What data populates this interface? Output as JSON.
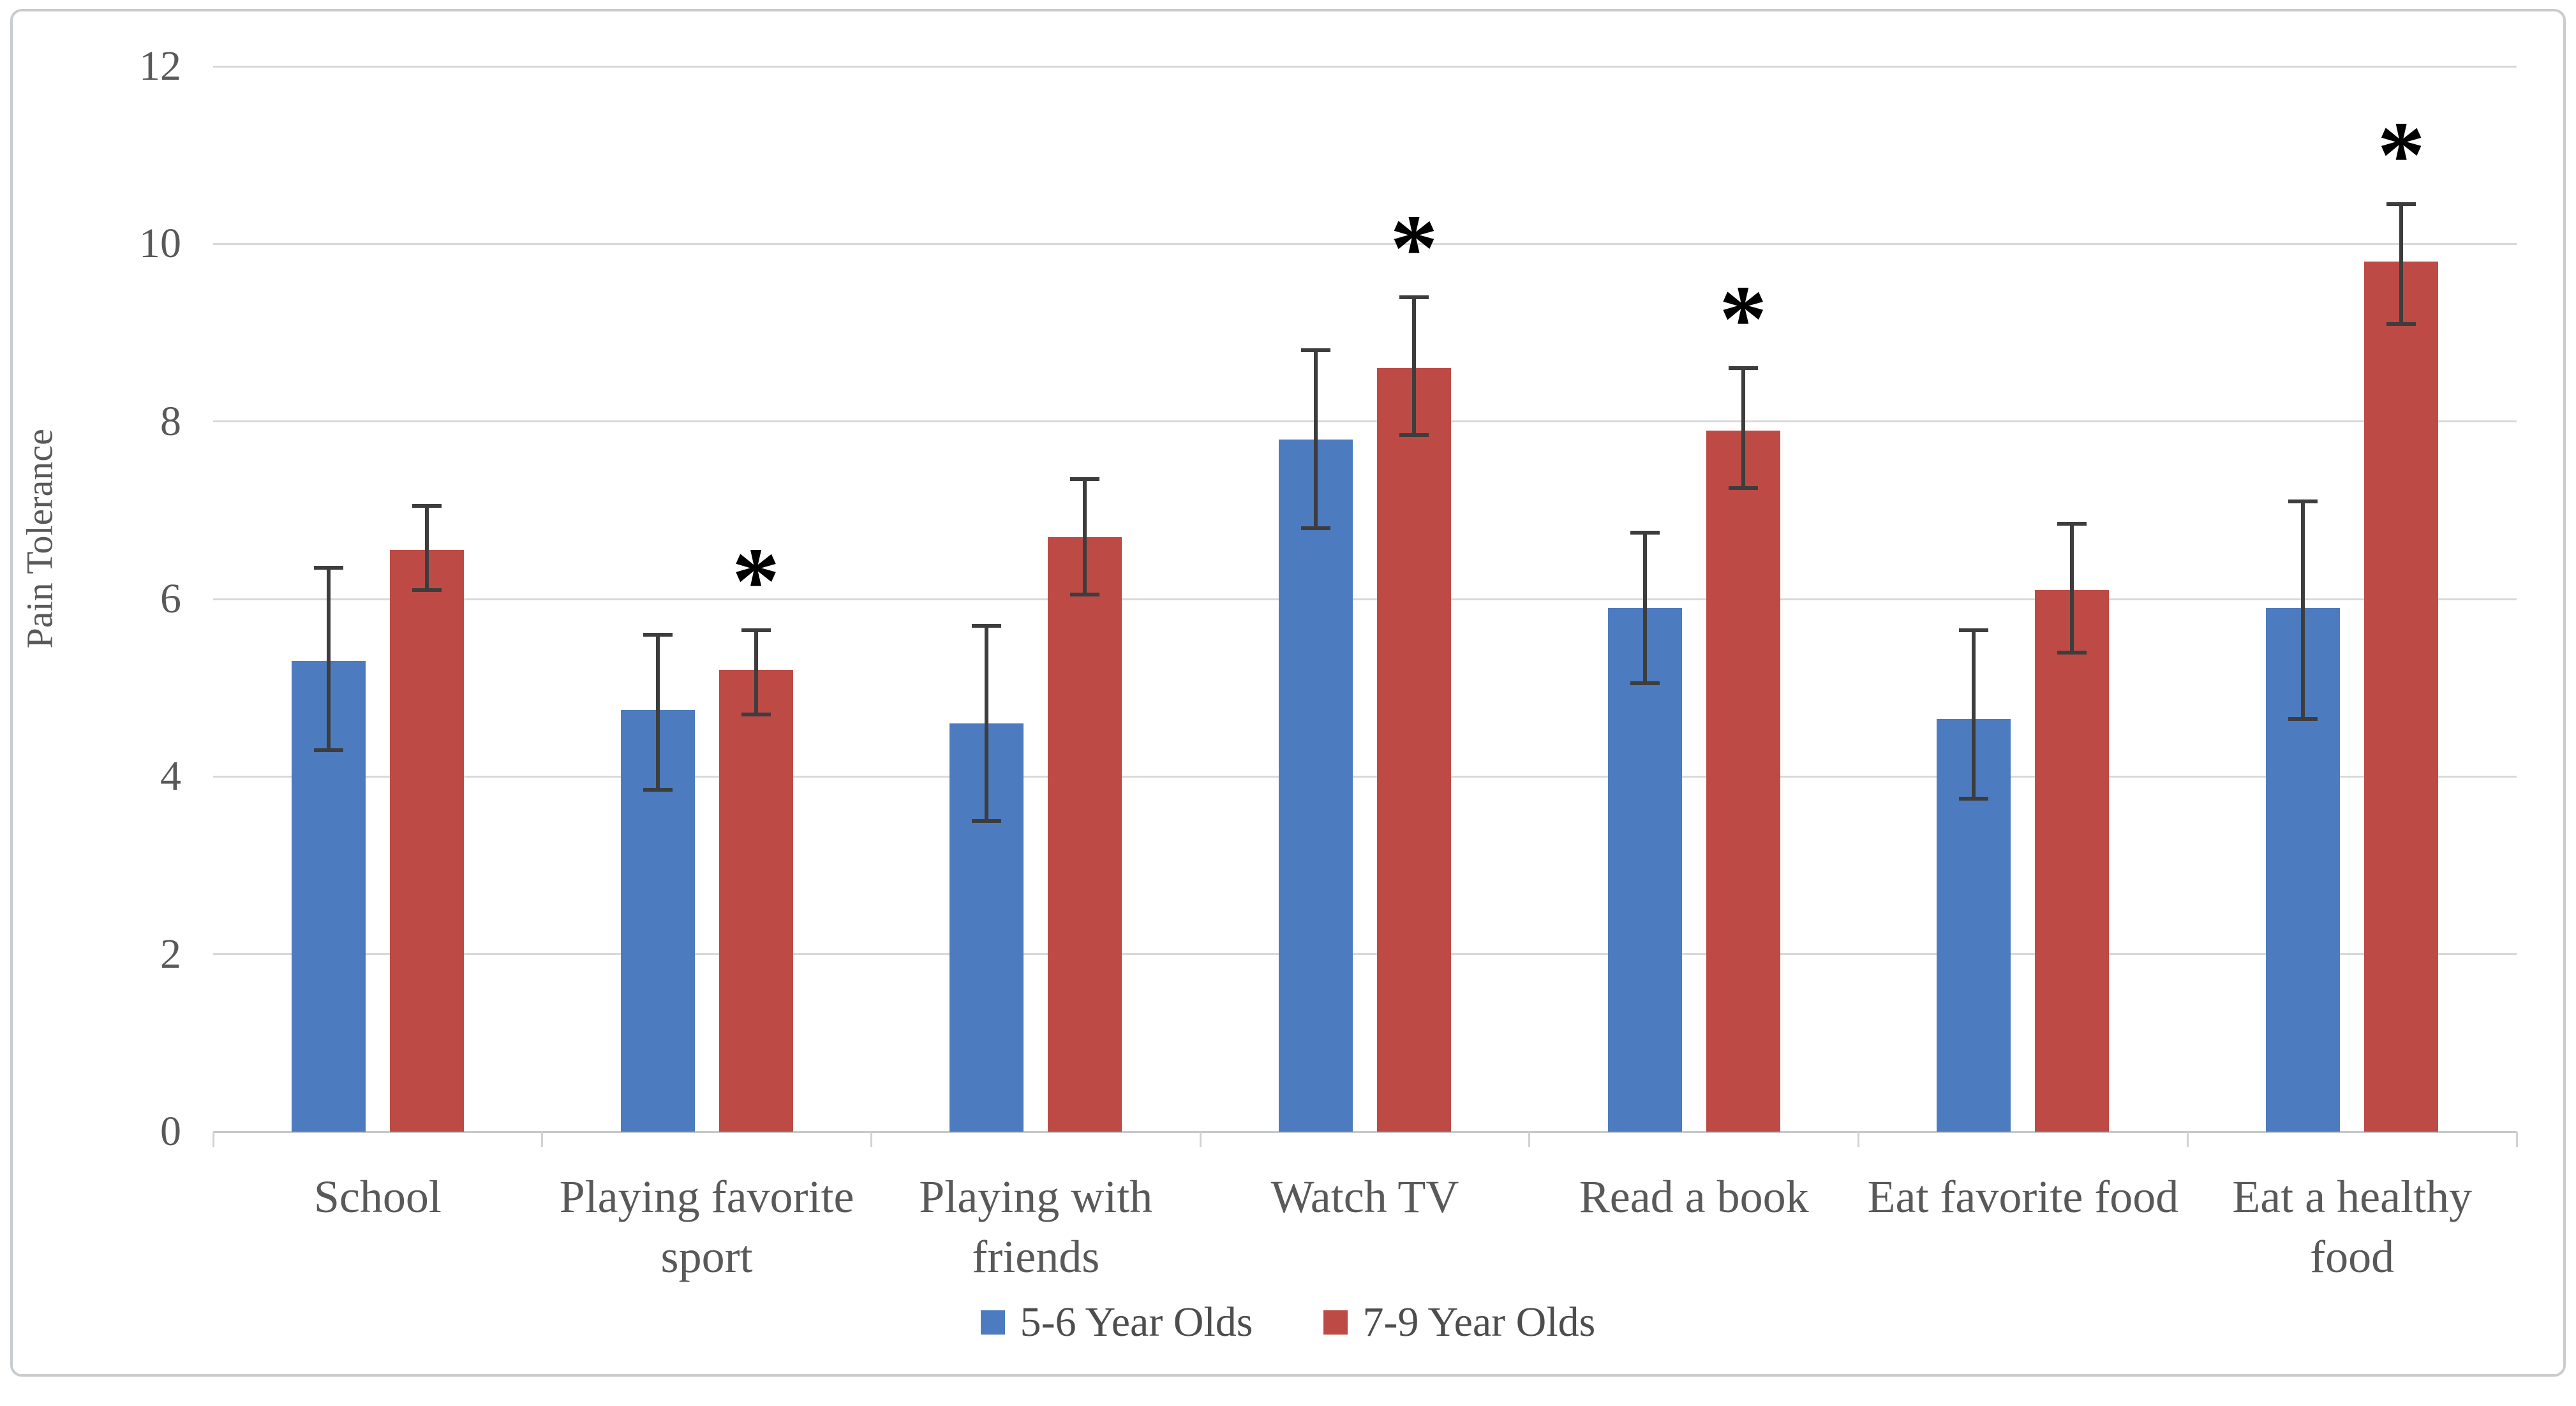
{
  "figure": {
    "background": "#ffffff",
    "border_color": "#c9ccce",
    "gridline_color": "#d9d9d9",
    "axis_text_color": "#595959",
    "error_bar_color": "#3d3d3d",
    "significance_marker": "*"
  },
  "chart_data": {
    "type": "bar",
    "title": "",
    "xlabel": "",
    "ylabel": "Pain Tolerance",
    "ylim": [
      0,
      12
    ],
    "y_ticks": [
      0,
      2,
      4,
      6,
      8,
      10,
      12
    ],
    "grid": true,
    "legend_position": "bottom",
    "categories": [
      "School",
      "Playing favorite sport",
      "Playing with friends",
      "Watch TV",
      "Read a book",
      "Eat favorite food",
      "Eat a healthy food"
    ],
    "category_lines": [
      [
        "School"
      ],
      [
        "Playing favorite",
        "sport"
      ],
      [
        "Playing with",
        "friends"
      ],
      [
        "Watch TV"
      ],
      [
        "Read a book"
      ],
      [
        "Eat favorite food"
      ],
      [
        "Eat a healthy",
        "food"
      ]
    ],
    "series": [
      {
        "name": "5-6 Year Olds",
        "color": "#4c7cbf",
        "values": [
          5.3,
          4.75,
          4.6,
          7.8,
          5.9,
          4.65,
          5.9
        ],
        "error_low": [
          4.3,
          3.85,
          3.5,
          6.8,
          5.05,
          3.75,
          4.65
        ],
        "error_high": [
          6.35,
          5.6,
          5.7,
          8.8,
          6.75,
          5.65,
          7.1
        ],
        "significant": [
          false,
          false,
          false,
          false,
          false,
          false,
          false
        ]
      },
      {
        "name": "7-9 Year Olds",
        "color": "#be4a46",
        "values": [
          6.55,
          5.2,
          6.7,
          8.6,
          7.9,
          6.1,
          9.8
        ],
        "error_low": [
          6.1,
          4.7,
          6.05,
          7.85,
          7.25,
          5.4,
          9.1
        ],
        "error_high": [
          7.05,
          5.65,
          7.35,
          9.4,
          8.6,
          6.85,
          10.45
        ],
        "significant": [
          false,
          true,
          false,
          true,
          true,
          false,
          true
        ]
      }
    ]
  }
}
